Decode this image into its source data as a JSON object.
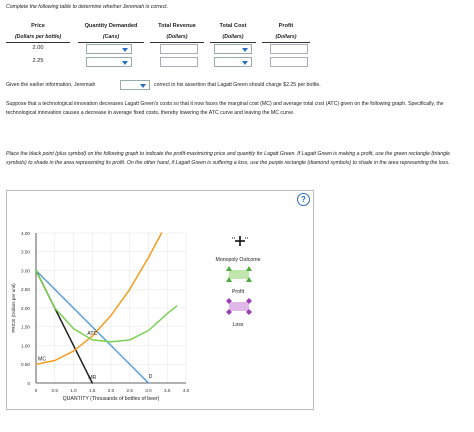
{
  "instructions": {
    "table_prompt": "Complete the following table to determine whether Jeremiah is correct.",
    "given_before": "Given the earlier information, Jeremiah",
    "given_after": "correct in his assertion that Lagatt Green should charge $2.25 per bottle.",
    "paragraph_1": "Suppose that a technological innovation decreases Lagatt Green's costs so that it now faces the marginal cost (MC) and average total cost (ATC) given on the following graph. Specifically, the technological innovation causes a decrease in average fixed costs, thereby lowering the ATC curve and leaving the MC curve.",
    "paragraph_2": "Place the black point (plus symbol) on the following graph to indicate the profit-maximizing price and quantity for Lagatt Green. If Lagatt Green is making a profit, use the green rectangle (triangle symbols) to shade in the area representing its profit. On the other hand, if Lagatt Green is suffering a loss, use the purple rectangle (diamond symbols) to shade in the area representing the loss."
  },
  "table": {
    "headers": [
      "Price",
      "Quantity Demanded",
      "Total Revenue",
      "Total Cost",
      "Profit"
    ],
    "subheaders": [
      "(Dollars per bottle)",
      "(Cans)",
      "(Dollars)",
      "(Dollars)",
      "(Dollars)"
    ],
    "rows": [
      {
        "price": "2.00"
      },
      {
        "price": "2.25"
      }
    ]
  },
  "help_label": "?",
  "legend": {
    "monopoly_outcome": "Monopoly Outcome",
    "profit": "Profit",
    "loss": "Loss"
  },
  "chart_data": {
    "type": "line",
    "xlabel": "QUANTITY (Thousands of bottles of beer)",
    "ylabel": "PRICE (Dollars per unit)",
    "xlim": [
      0,
      4.0
    ],
    "ylim": [
      0,
      4.0
    ],
    "x_ticks": [
      "0",
      "0.5",
      "1.0",
      "1.5",
      "2.0",
      "2.5",
      "3.0",
      "3.5",
      "4.0"
    ],
    "y_ticks": [
      "0",
      "0.50",
      "1.00",
      "1.50",
      "2.00",
      "2.50",
      "3.00",
      "3.50",
      "4.00"
    ],
    "series": [
      {
        "name": "D",
        "color": "#5b9bd5",
        "points": [
          [
            0,
            3.0
          ],
          [
            3.0,
            0
          ]
        ]
      },
      {
        "name": "MR",
        "color": "#222222",
        "points": [
          [
            0,
            3.0
          ],
          [
            1.5,
            0
          ]
        ]
      },
      {
        "name": "MC",
        "color": "#f39c1f",
        "points": [
          [
            0,
            0.5
          ],
          [
            0.5,
            0.6
          ],
          [
            1.0,
            0.85
          ],
          [
            1.5,
            1.25
          ],
          [
            2.0,
            1.8
          ],
          [
            2.5,
            2.5
          ],
          [
            3.0,
            3.35
          ],
          [
            3.35,
            4.0
          ]
        ]
      },
      {
        "name": "ATC",
        "color": "#7ad151",
        "points": [
          [
            0,
            3.0
          ],
          [
            0.5,
            2.0
          ],
          [
            1.0,
            1.45
          ],
          [
            1.5,
            1.15
          ],
          [
            2.0,
            1.1
          ],
          [
            2.5,
            1.15
          ],
          [
            3.0,
            1.4
          ],
          [
            3.5,
            1.85
          ],
          [
            3.75,
            2.05
          ]
        ]
      }
    ]
  }
}
